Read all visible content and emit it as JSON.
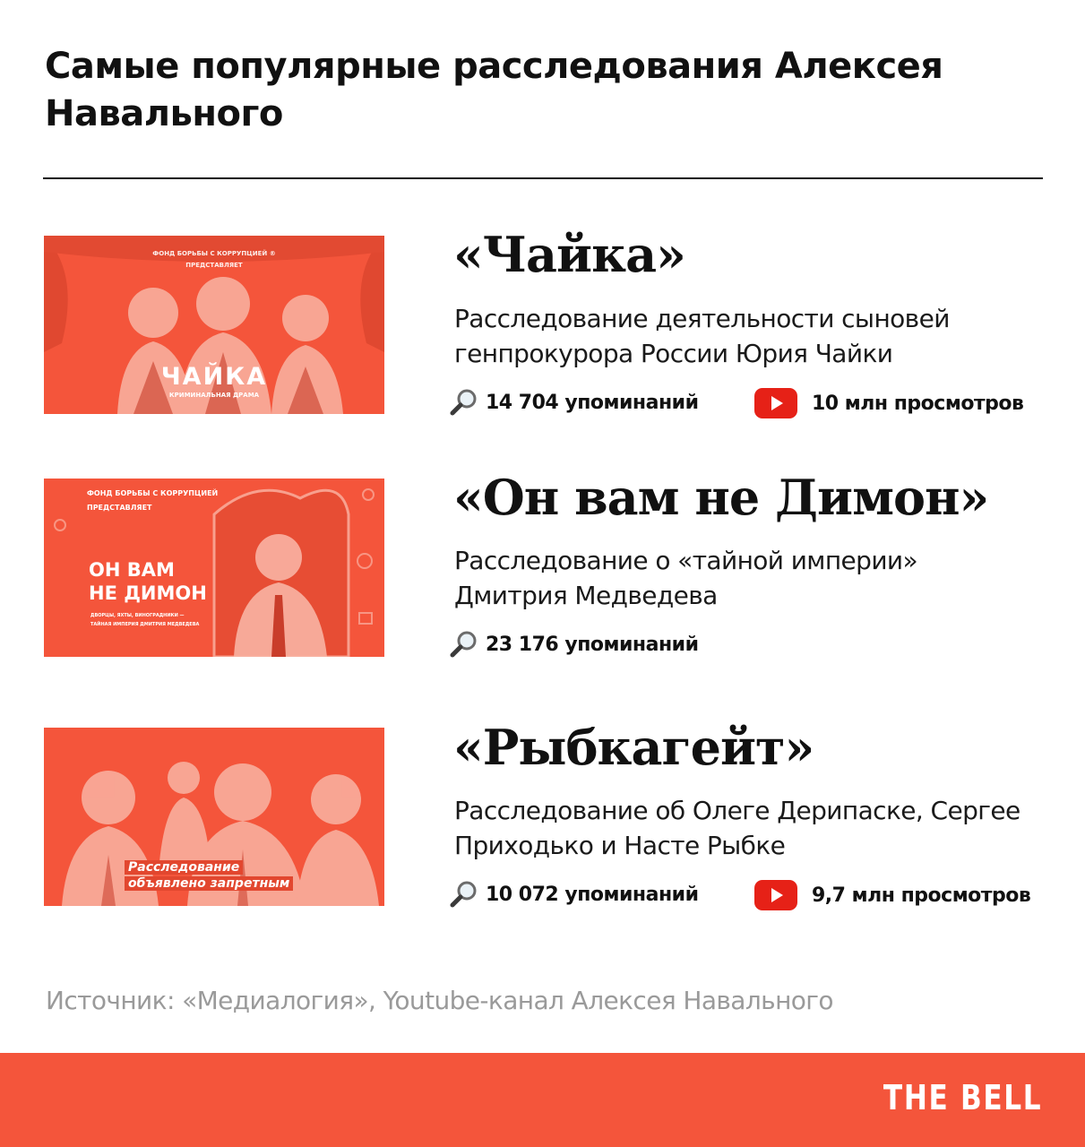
{
  "header": {
    "title": "Самые популярные расследования Алексея Навального"
  },
  "colors": {
    "accent": "#f4553b",
    "youtube_red": "#e62117",
    "text": "#111111",
    "muted": "#9a9a9a"
  },
  "icons": {
    "mentions": "magnifier-icon",
    "views": "youtube-icon"
  },
  "investigations": [
    {
      "title": "«Чайка»",
      "description": "Расследование деятельности сыновей генпрокурора России Юрия Чайки",
      "mentions": "14 704 упоминаний",
      "views": "10 млн просмотров",
      "thumbnail": {
        "top_text_1": "ФОНД БОРЬБЫ С КОРРУПЦИЕЙ ®",
        "top_text_2": "ПРЕДСТАВЛЯЕТ",
        "headline": "ЧАЙКА",
        "subline": "КРИМИНАЛЬНАЯ ДРАМА"
      }
    },
    {
      "title": "«Он вам не Димон»",
      "description": "Расследование о «тайной империи» Дмитрия Медведева",
      "mentions": "23 176 упоминаний",
      "thumbnail": {
        "top_text_1": "ФОНД БОРЬБЫ С КОРРУПЦИЕЙ",
        "top_text_2": "ПРЕДСТАВЛЯЕТ",
        "headline_1": "ОН ВАМ",
        "headline_2": "НЕ ДИМОН",
        "subline_1": "ДВОРЦЫ, ЯХТЫ, ВИНОГРАДНИКИ —",
        "subline_2": "ТАЙНАЯ ИМПЕРИЯ ДМИТРИЯ МЕДВЕДЕВА"
      }
    },
    {
      "title": "«Рыбкагейт»",
      "description": "Расследование об Олеге Дерипаске, Сергее Приходько и Насте Рыбке",
      "mentions": "10 072 упоминаний",
      "views": "9,7 млн просмотров",
      "thumbnail": {
        "caption_1": "Расследование",
        "caption_2": "объявлено запретным"
      }
    }
  ],
  "source": "Источник: «Медиалогия», Youtube-канал Алексея Навального",
  "brand": "THE BELL"
}
